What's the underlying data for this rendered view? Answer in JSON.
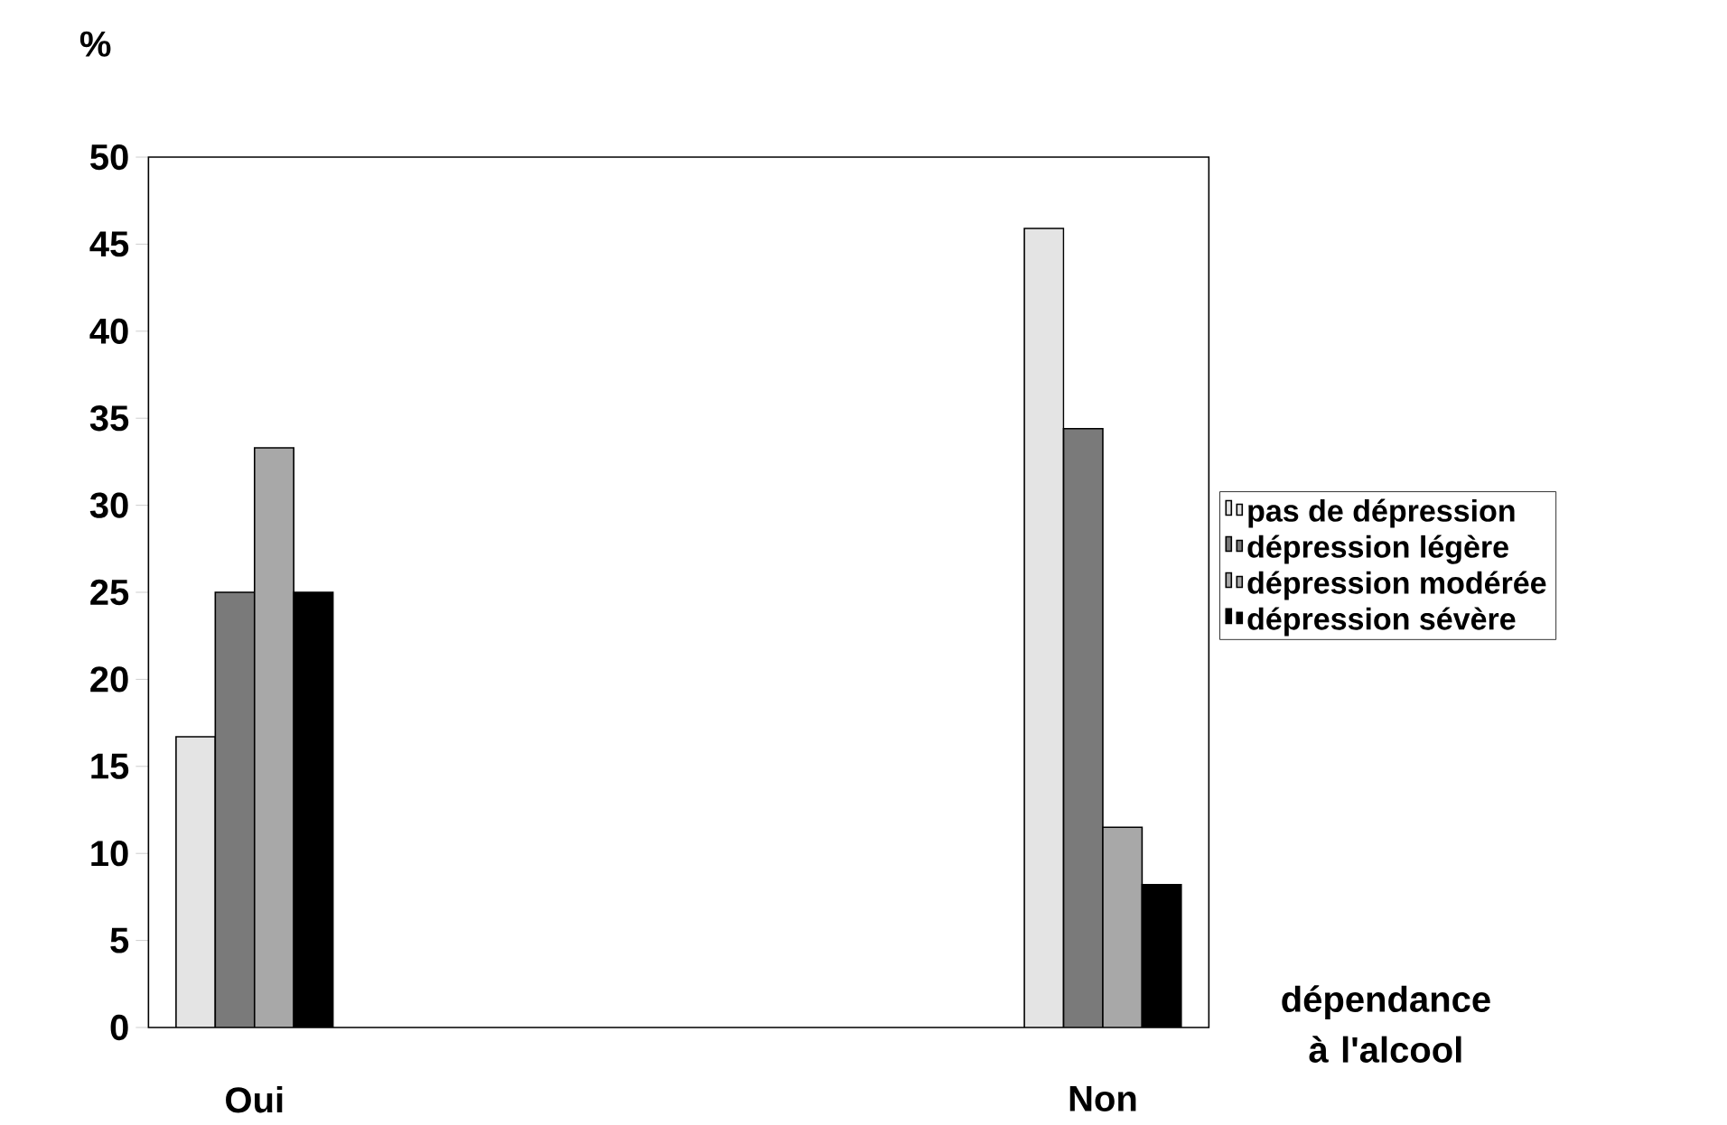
{
  "chart_data": {
    "type": "bar",
    "ylabel": "%",
    "xlabel": "dépendance à l'alcool",
    "categories": [
      "Oui",
      null,
      null,
      null,
      "Non"
    ],
    "series": [
      {
        "name": "pas de dépression",
        "color": "#e4e4e4",
        "values": [
          16.7,
          null,
          null,
          null,
          45.9
        ]
      },
      {
        "name": "dépression légère",
        "color": "#7a7a7a",
        "values": [
          25,
          null,
          null,
          null,
          34.4
        ]
      },
      {
        "name": "dépression modérée",
        "color": "#a8a8a8",
        "values": [
          33.3,
          null,
          null,
          null,
          11.5
        ]
      },
      {
        "name": "dépression sévère",
        "color": "#000000",
        "values": [
          25,
          null,
          null,
          null,
          8.2
        ]
      }
    ],
    "ylim": [
      0,
      50
    ],
    "yticks": [
      0,
      5,
      10,
      15,
      20,
      25,
      30,
      35,
      40,
      45,
      50
    ],
    "legend": "right",
    "grid": false
  }
}
